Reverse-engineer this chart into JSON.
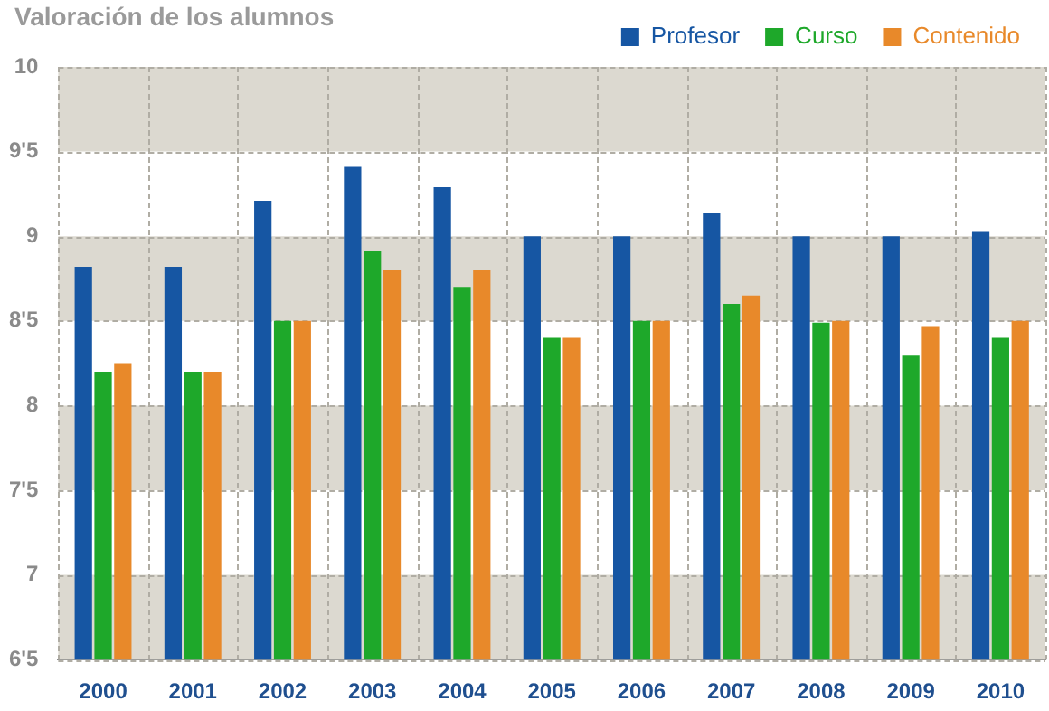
{
  "chart_data": {
    "type": "bar",
    "title": "Valoración de los alumnos",
    "categories": [
      "2000",
      "2001",
      "2002",
      "2003",
      "2004",
      "2005",
      "2006",
      "2007",
      "2008",
      "2009",
      "2010"
    ],
    "series": [
      {
        "name": "Profesor",
        "color": "#1656a3",
        "values": [
          8.82,
          8.82,
          9.21,
          9.41,
          9.29,
          9.0,
          9.0,
          9.14,
          9.0,
          9.0,
          9.03
        ]
      },
      {
        "name": "Curso",
        "color": "#1ea82a",
        "values": [
          8.2,
          8.2,
          8.5,
          8.91,
          8.7,
          8.4,
          8.5,
          8.6,
          8.49,
          8.3,
          8.4
        ]
      },
      {
        "name": "Contenido",
        "color": "#e8892a",
        "values": [
          8.25,
          8.2,
          8.5,
          8.8,
          8.8,
          8.4,
          8.5,
          8.65,
          8.5,
          8.47,
          8.5
        ]
      }
    ],
    "ylim": [
      6.5,
      10
    ],
    "yticks": [
      {
        "value": 6.5,
        "label": "6'5"
      },
      {
        "value": 7,
        "label": "7"
      },
      {
        "value": 7.5,
        "label": "7'5"
      },
      {
        "value": 8,
        "label": "8"
      },
      {
        "value": 8.5,
        "label": "8'5"
      },
      {
        "value": 9,
        "label": "9"
      },
      {
        "value": 9.5,
        "label": "9'5"
      },
      {
        "value": 10,
        "label": "10"
      }
    ],
    "bands": [
      {
        "axis": "y",
        "from": 6.5,
        "to": 7,
        "color": "#dcd9d0"
      },
      {
        "axis": "y",
        "from": 7.5,
        "to": 8,
        "color": "#dcd9d0"
      },
      {
        "axis": "y",
        "from": 8.5,
        "to": 9,
        "color": "#dcd9d0"
      },
      {
        "axis": "y",
        "from": 9.5,
        "to": 10,
        "color": "#dcd9d0"
      }
    ],
    "grid": true,
    "legend": "top right"
  }
}
